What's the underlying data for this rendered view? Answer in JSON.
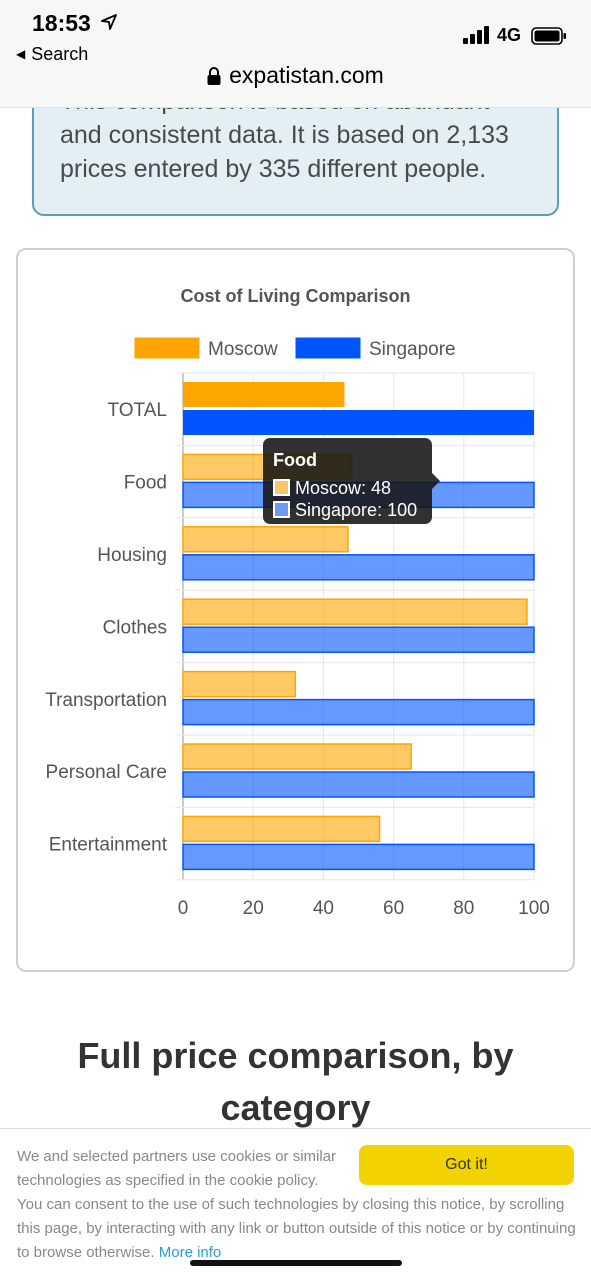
{
  "status_bar": {
    "time": "18:53",
    "back_label": "Search",
    "network": "4G"
  },
  "url_bar": {
    "domain": "expatistan.com"
  },
  "info_box": {
    "text": "and consistent data. It is based on 2,133 prices entered by 335 different people.",
    "clipped_line": "This comparison is based on abundant"
  },
  "chart_data": {
    "type": "bar",
    "orientation": "horizontal",
    "title": "Cost of Living Comparison",
    "categories": [
      "TOTAL",
      "Food",
      "Housing",
      "Clothes",
      "Transportation",
      "Personal Care",
      "Entertainment"
    ],
    "series": [
      {
        "name": "Moscow",
        "values": [
          46,
          48,
          47,
          98,
          32,
          65,
          56
        ],
        "color": "#ffa500"
      },
      {
        "name": "Singapore",
        "values": [
          100,
          100,
          100,
          100,
          100,
          100,
          100
        ],
        "color": "#0055ff"
      }
    ],
    "xlim": [
      0,
      100
    ],
    "xticks": [
      0,
      20,
      40,
      60,
      80,
      100
    ],
    "legend_position": "top",
    "grid": true,
    "highlighted_category": "TOTAL"
  },
  "tooltip": {
    "title": "Food",
    "rows": [
      "Moscow: 48",
      "Singapore: 100"
    ]
  },
  "section_heading": "Full price comparison, by category",
  "cookie_banner": {
    "text_1": "We and selected partners use cookies or similar technologies as specified in the cookie policy.",
    "text_2": "You can consent to the use of such technologies by closing this notice, by scrolling this page, by interacting with any link or button outside of this notice or by continuing to browse otherwise.",
    "link_label": "More info",
    "button_label": "Got it!"
  }
}
